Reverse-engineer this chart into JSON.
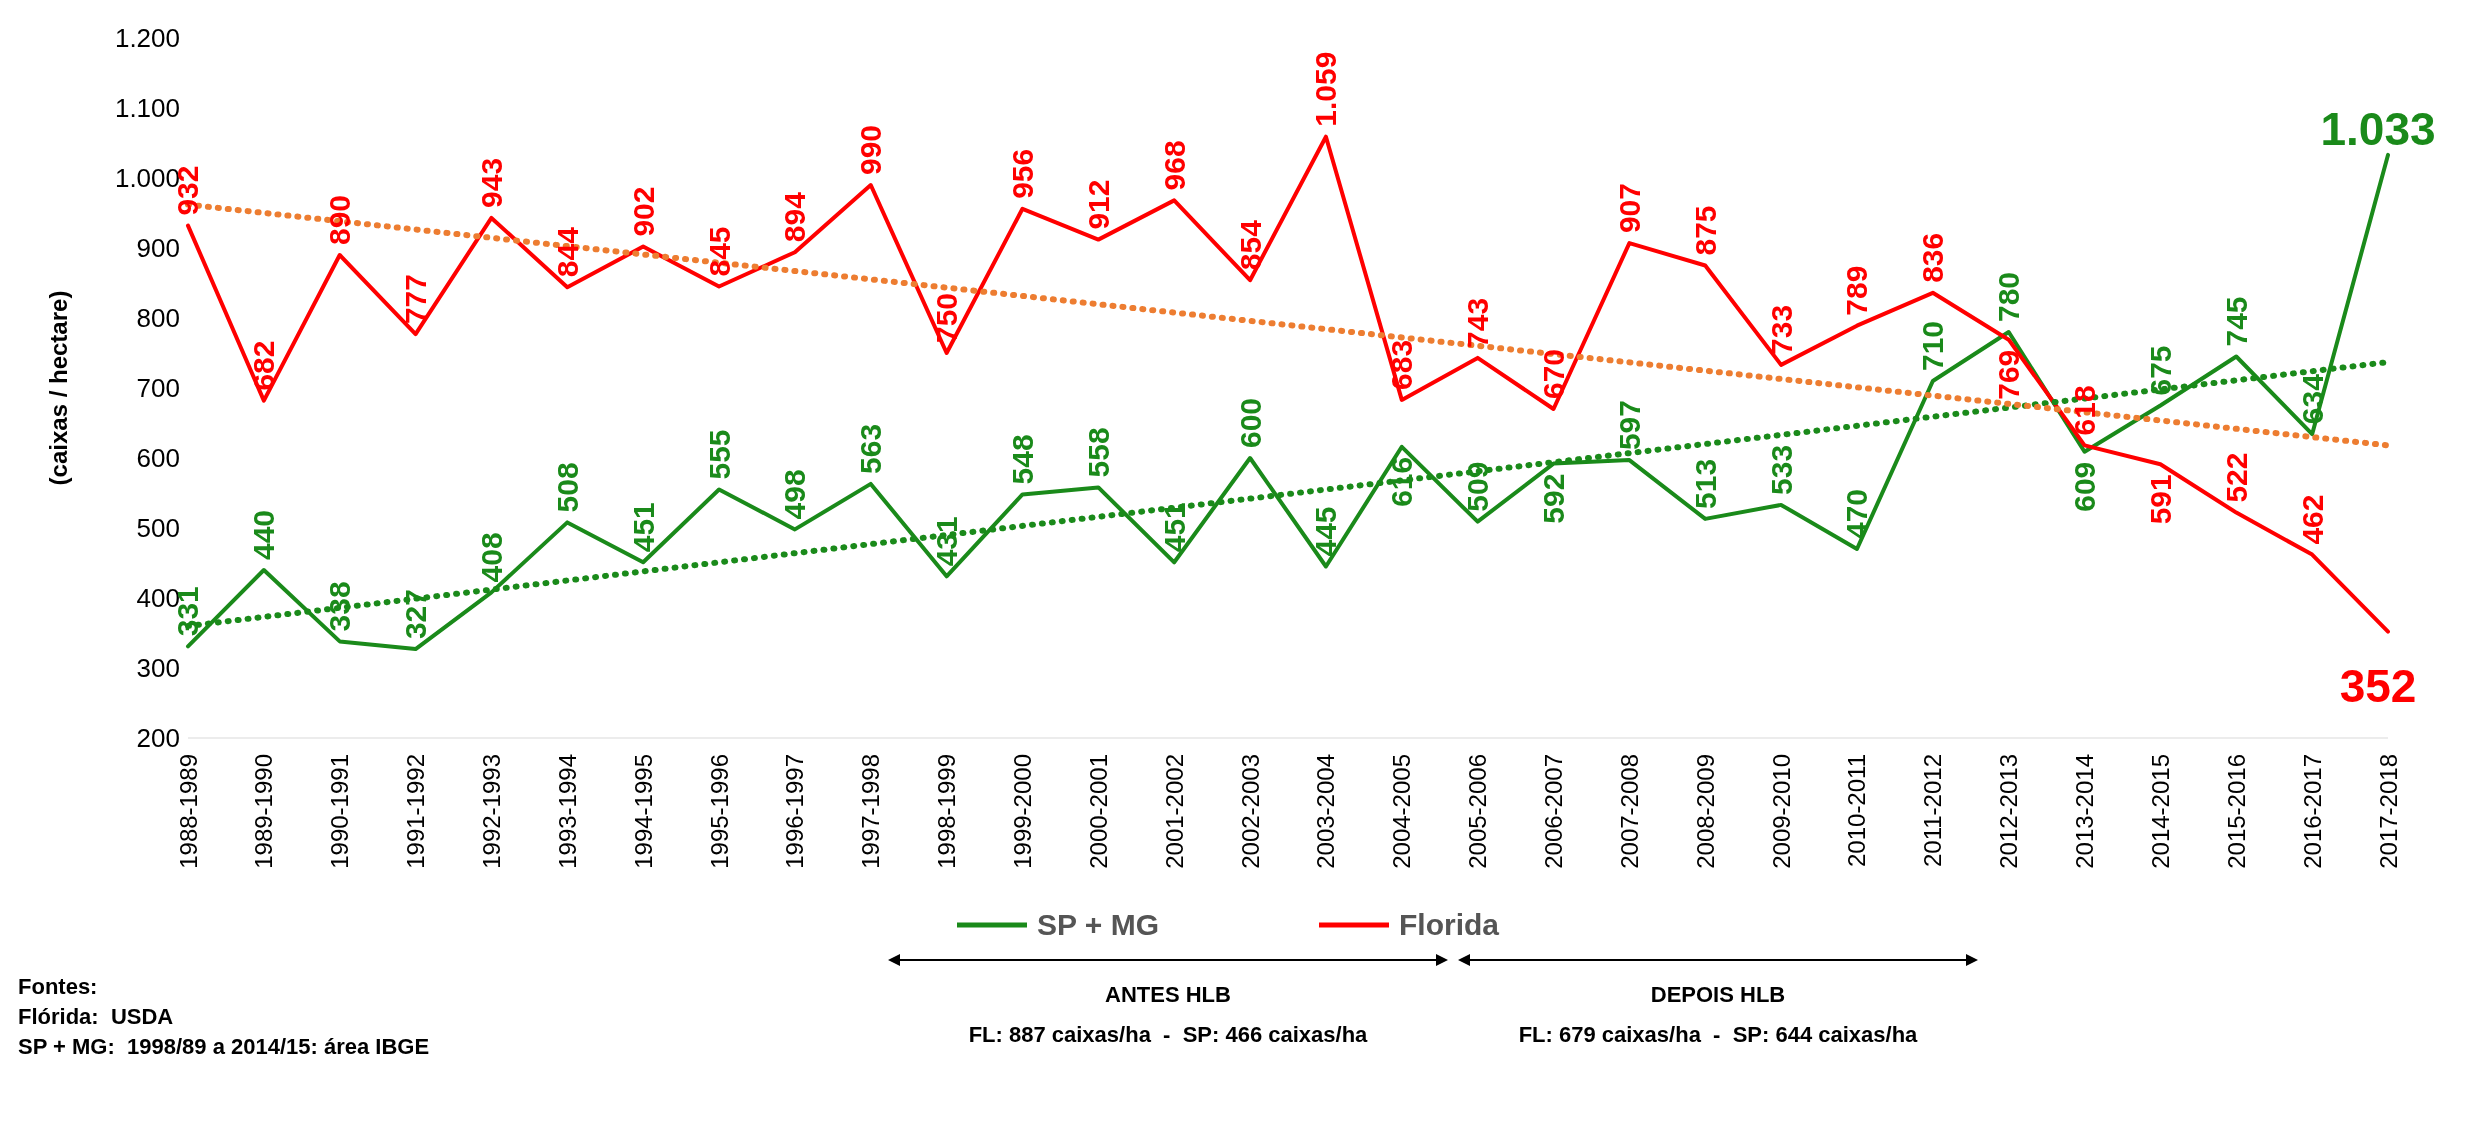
{
  "chart_data": {
    "type": "line",
    "ylabel": "(caixas / hectare)",
    "categories": [
      "1988-1989",
      "1989-1990",
      "1990-1991",
      "1991-1992",
      "1992-1993",
      "1993-1994",
      "1994-1995",
      "1995-1996",
      "1996-1997",
      "1997-1998",
      "1998-1999",
      "1999-2000",
      "2000-2001",
      "2001-2002",
      "2002-2003",
      "2003-2004",
      "2004-2005",
      "2005-2006",
      "2006-2007",
      "2007-2008",
      "2008-2009",
      "2009-2010",
      "2010-2011",
      "2011-2012",
      "2012-2013",
      "2013-2014",
      "2014-2015",
      "2015-2016",
      "2016-2017",
      "2017-2018"
    ],
    "series": [
      {
        "name": "SP + MG",
        "color": "#1a8a1a",
        "values": [
          331,
          440,
          338,
          327,
          408,
          508,
          451,
          555,
          498,
          563,
          431,
          548,
          558,
          451,
          600,
          445,
          616,
          509,
          592,
          597,
          513,
          533,
          470,
          710,
          780,
          609,
          675,
          745,
          634,
          1033
        ],
        "value_labels": [
          "331",
          "440",
          "338",
          "327",
          "408",
          "508",
          "451",
          "555",
          "498",
          "563",
          "431",
          "548",
          "558",
          "451",
          "600",
          "445",
          "616",
          "509",
          "592",
          "597",
          "513",
          "533",
          "470",
          "710",
          "780",
          "609",
          "675",
          "745",
          "634",
          "1.033"
        ]
      },
      {
        "name": "Florida",
        "color": "#ff0000",
        "values": [
          932,
          682,
          890,
          777,
          943,
          844,
          902,
          845,
          894,
          990,
          750,
          956,
          912,
          968,
          854,
          1059,
          683,
          743,
          670,
          907,
          875,
          733,
          789,
          836,
          769,
          618,
          591,
          522,
          462,
          352
        ],
        "value_labels": [
          "932",
          "682",
          "890",
          "777",
          "943",
          "844",
          "902",
          "845",
          "894",
          "990",
          "750",
          "956",
          "912",
          "968",
          "854",
          "1.059",
          "683",
          "743",
          "670",
          "907",
          "875",
          "733",
          "789",
          "836",
          "769",
          "618",
          "591",
          "522",
          "462",
          "352"
        ]
      },
      {
        "color": "#1a8a1a",
        "line_style": "dotted",
        "values": [
          360,
          null,
          null,
          null,
          null,
          null,
          null,
          null,
          null,
          null,
          null,
          null,
          null,
          null,
          null,
          null,
          null,
          null,
          null,
          null,
          null,
          null,
          null,
          null,
          null,
          null,
          null,
          null,
          null,
          737
        ]
      },
      {
        "color": "#ed7d31",
        "line_style": "dotted",
        "values": [
          962,
          null,
          null,
          null,
          null,
          null,
          null,
          null,
          null,
          null,
          null,
          null,
          null,
          null,
          null,
          null,
          null,
          null,
          null,
          null,
          null,
          null,
          null,
          null,
          null,
          null,
          null,
          null,
          null,
          618
        ]
      }
    ],
    "ylim": [
      200,
      1200
    ],
    "yticks": [
      {
        "value": 200,
        "label": "200"
      },
      {
        "value": 300,
        "label": "300"
      },
      {
        "value": 400,
        "label": "400"
      },
      {
        "value": 500,
        "label": "500"
      },
      {
        "value": 600,
        "label": "600"
      },
      {
        "value": 700,
        "label": "700"
      },
      {
        "value": 800,
        "label": "800"
      },
      {
        "value": 900,
        "label": "900"
      },
      {
        "value": 1000,
        "label": "1.000"
      },
      {
        "value": 1100,
        "label": "1.100"
      },
      {
        "value": 1200,
        "label": "1.200"
      }
    ],
    "grid": false,
    "legend": "bottom",
    "line_style": "solid",
    "marker": "none",
    "annotations": [
      "Fontes:",
      "Flórida:  USDA",
      "SP + MG:  1998/89 a 2014/15: área IBGE",
      "ANTES HLB",
      "FL: 887 caixas/ha  -  SP: 466 caixas/ha",
      "DEPOIS HLB",
      "FL: 679 caixas/ha  -  SP: 644 caixas/ha"
    ]
  }
}
